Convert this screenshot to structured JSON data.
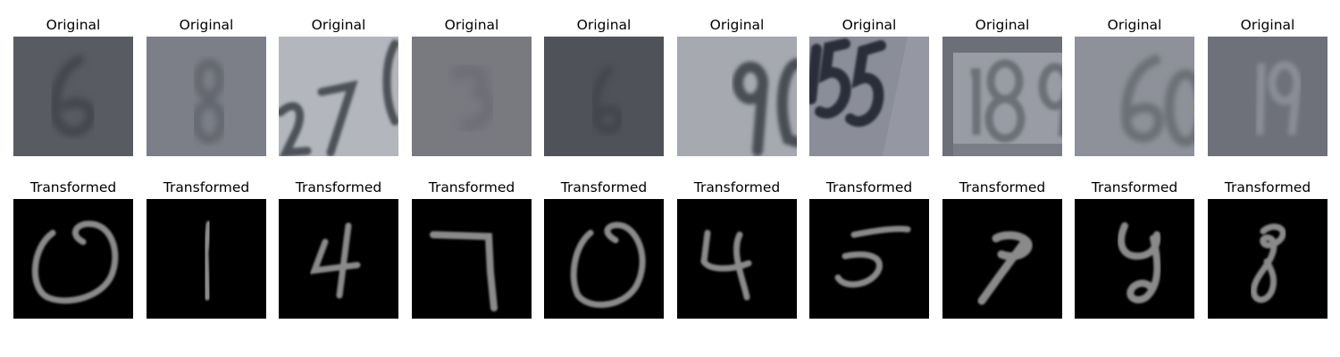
{
  "figure": {
    "top_row": [
      {
        "title": "Original",
        "digit": "6",
        "bg": "#595b63",
        "ink": "#484a53"
      },
      {
        "title": "Original",
        "digit": "8",
        "bg": "#7c7f87",
        "ink": "#62656d"
      },
      {
        "title": "Original",
        "digit": "27(",
        "bg": "#b3b6bd",
        "ink": "#4e5159"
      },
      {
        "title": "Original",
        "digit": "3",
        "bg": "#787a80",
        "ink": "#6a6c72"
      },
      {
        "title": "Original",
        "digit": "6",
        "bg": "#50525a",
        "ink": "#464850"
      },
      {
        "title": "Original",
        "digit": "90",
        "bg": "#a6a9b0",
        "ink": "#4a4d55"
      },
      {
        "title": "Original",
        "digit": "155",
        "bg": "#8b8e98",
        "ink": "#2c2f3a"
      },
      {
        "title": "Original",
        "digit": "89",
        "bg": "#999ca4",
        "ink": "#6c6f77"
      },
      {
        "title": "Original",
        "digit": "60",
        "bg": "#8e9199",
        "ink": "#6c6f77"
      },
      {
        "title": "Original",
        "digit": "19",
        "bg": "#6e717a",
        "ink": "#8a8d96"
      }
    ],
    "bottom_row": [
      {
        "title": "Transformed",
        "digit": "0"
      },
      {
        "title": "Transformed",
        "digit": "1"
      },
      {
        "title": "Transformed",
        "digit": "4"
      },
      {
        "title": "Transformed",
        "digit": "7"
      },
      {
        "title": "Transformed",
        "digit": "0"
      },
      {
        "title": "Transformed",
        "digit": "4"
      },
      {
        "title": "Transformed",
        "digit": "5"
      },
      {
        "title": "Transformed",
        "digit": "9"
      },
      {
        "title": "Transformed",
        "digit": "9"
      },
      {
        "title": "Transformed",
        "digit": "8"
      }
    ],
    "colors": {
      "transformed_bg": "#000000",
      "transformed_ink": "#8a8a8a"
    }
  }
}
